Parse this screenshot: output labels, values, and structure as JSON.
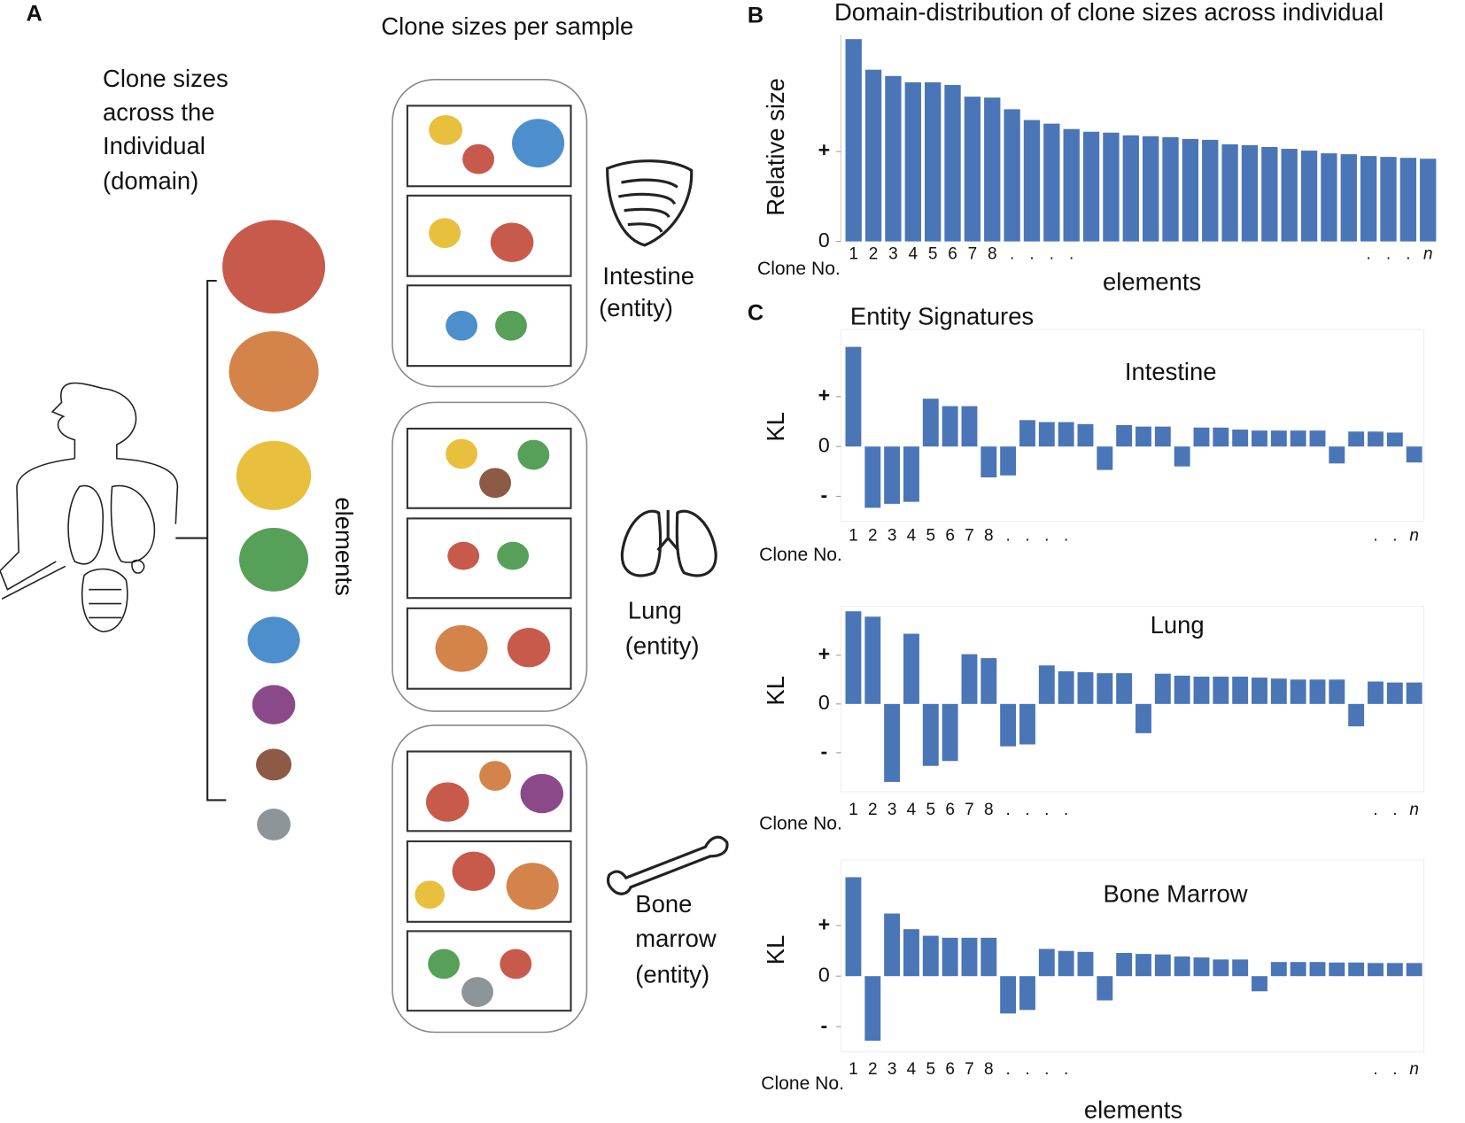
{
  "panel_a": {
    "label": "A",
    "domain_title": [
      "Clone sizes",
      "across the",
      "Individual",
      "(domain)"
    ],
    "elements_label": "elements",
    "samples_title": "Clone sizes per sample",
    "entities": [
      [
        "Intestine",
        "(entity)"
      ],
      [
        "Lung",
        "(entity)"
      ],
      [
        "Bone",
        "marrow",
        "(entity)"
      ]
    ]
  },
  "chart_data": [
    {
      "type": "bar",
      "panel": "B",
      "title": "Domain-distribution of clone sizes across individual",
      "y_label": "Relative size",
      "x_axis_name": "Clone No.",
      "x_label": "elements",
      "color": "#4a76b8",
      "categories": [
        "1",
        "2",
        "3",
        "4",
        "5",
        "6",
        "7",
        "8",
        ".",
        ".",
        ".",
        ".",
        null,
        null,
        null,
        null,
        null,
        null,
        null,
        null,
        null,
        null,
        null,
        null,
        null,
        null,
        ".",
        ".",
        ".",
        "n"
      ],
      "values": [
        2.25,
        1.91,
        1.84,
        1.77,
        1.77,
        1.74,
        1.61,
        1.6,
        1.47,
        1.35,
        1.31,
        1.25,
        1.22,
        1.21,
        1.18,
        1.17,
        1.16,
        1.14,
        1.13,
        1.08,
        1.07,
        1.05,
        1.03,
        1.01,
        0.98,
        0.97,
        0.95,
        0.94,
        0.93,
        0.92
      ],
      "ylim": [
        0,
        2.3
      ],
      "yticks": [
        0,
        {
          "value": 1,
          "label": "+"
        }
      ]
    },
    {
      "type": "bar",
      "panel": "C",
      "heading": "Entity Signatures",
      "title": "Intestine",
      "y_label": "KL",
      "x_axis_name": "Clone No.",
      "color": "#4a76b8",
      "categories": [
        "1",
        "2",
        "3",
        "4",
        "5",
        "6",
        "7",
        "8",
        ".",
        ".",
        ".",
        ".",
        null,
        null,
        null,
        null,
        null,
        null,
        null,
        null,
        null,
        null,
        null,
        null,
        null,
        null,
        null,
        ".",
        ".",
        "n"
      ],
      "values": [
        2.0,
        -1.23,
        -1.15,
        -1.11,
        0.96,
        0.81,
        0.81,
        -0.62,
        -0.58,
        0.53,
        0.49,
        0.49,
        0.45,
        -0.47,
        0.43,
        0.4,
        0.4,
        -0.4,
        0.38,
        0.38,
        0.34,
        0.32,
        0.32,
        0.32,
        0.32,
        -0.34,
        0.3,
        0.3,
        0.28,
        -0.32
      ],
      "ylim": [
        -1.5,
        2.35
      ],
      "yticks": [
        {
          "value": -1,
          "label": "-"
        },
        0,
        {
          "value": 1,
          "label": "+"
        }
      ]
    },
    {
      "type": "bar",
      "title": "Lung",
      "y_label": "KL",
      "x_axis_name": "Clone No.",
      "color": "#4a76b8",
      "categories": [
        "1",
        "2",
        "3",
        "4",
        "5",
        "6",
        "7",
        "8",
        ".",
        ".",
        ".",
        ".",
        null,
        null,
        null,
        null,
        null,
        null,
        null,
        null,
        null,
        null,
        null,
        null,
        null,
        null,
        null,
        ".",
        ".",
        "n"
      ],
      "values": [
        1.9,
        1.79,
        -1.6,
        1.44,
        -1.27,
        -1.17,
        1.02,
        0.94,
        -0.87,
        -0.83,
        0.79,
        0.67,
        0.65,
        0.63,
        0.63,
        -0.6,
        0.62,
        0.58,
        0.56,
        0.56,
        0.56,
        0.54,
        0.52,
        0.5,
        0.5,
        0.5,
        -0.46,
        0.46,
        0.44,
        0.44
      ],
      "ylim": [
        -1.8,
        2
      ],
      "yticks": [
        {
          "value": -1,
          "label": "-"
        },
        0,
        {
          "value": 1,
          "label": "+"
        }
      ]
    },
    {
      "type": "bar",
      "title": "Bone Marrow",
      "y_label": "KL",
      "x_axis_name": "Clone No.",
      "x_label": "elements",
      "color": "#4a76b8",
      "categories": [
        "1",
        "2",
        "3",
        "4",
        "5",
        "6",
        "7",
        "8",
        ".",
        ".",
        ".",
        ".",
        null,
        null,
        null,
        null,
        null,
        null,
        null,
        null,
        null,
        null,
        null,
        null,
        null,
        null,
        null,
        ".",
        ".",
        "n"
      ],
      "values": [
        1.96,
        -1.28,
        1.24,
        0.93,
        0.8,
        0.76,
        0.76,
        0.76,
        -0.74,
        -0.67,
        0.54,
        0.5,
        0.48,
        -0.48,
        0.46,
        0.44,
        0.43,
        0.39,
        0.37,
        0.33,
        0.33,
        -0.3,
        0.28,
        0.28,
        0.28,
        0.27,
        0.27,
        0.26,
        0.26,
        0.26
      ],
      "ylim": [
        -1.5,
        2.3
      ],
      "yticks": [
        {
          "value": -1,
          "label": "-"
        },
        0,
        {
          "value": 1,
          "label": "+"
        }
      ]
    }
  ]
}
